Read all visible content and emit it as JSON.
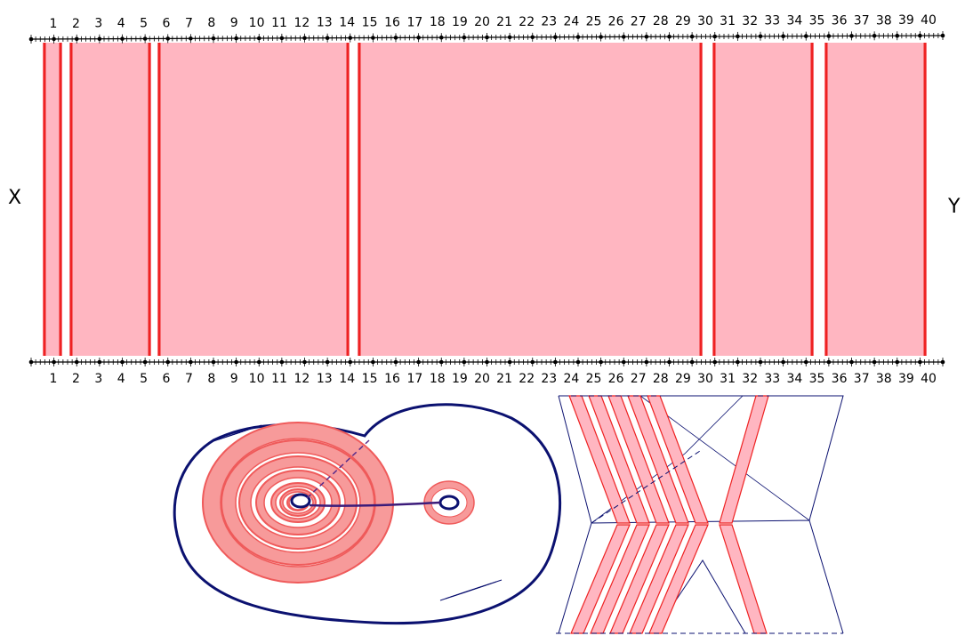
{
  "labels": {
    "left": "X",
    "right": "Y"
  },
  "ruler": {
    "numbers": [
      "1",
      "2",
      "3",
      "4",
      "5",
      "6",
      "7",
      "8",
      "9",
      "10",
      "11",
      "12",
      "13",
      "14",
      "15",
      "16",
      "17",
      "18",
      "19",
      "20",
      "21",
      "22",
      "23",
      "24",
      "25",
      "26",
      "27",
      "28",
      "29",
      "30",
      "31",
      "32",
      "33",
      "34",
      "35",
      "36",
      "37",
      "38",
      "39",
      "40"
    ]
  },
  "strip": {
    "cut_lines_between": [
      1.4,
      5.4,
      14.4,
      30.4,
      35.4
    ]
  },
  "colors": {
    "band_fill": "#ffb6c1",
    "band_edge": "#ee2222",
    "ring_fill": "#f79a9a",
    "ring_edge": "#ef5a5a",
    "outline": "#0b1170",
    "ruler": "#000000"
  }
}
